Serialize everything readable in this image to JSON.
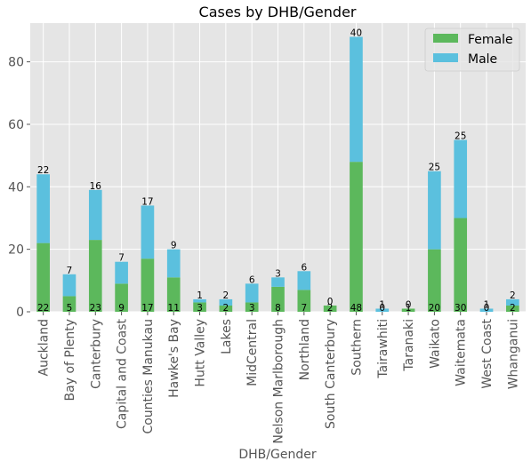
{
  "chart_data": {
    "type": "bar",
    "stacked": true,
    "title": "Cases by DHB/Gender",
    "xlabel": "DHB/Gender",
    "ylabel": "",
    "ylim": [
      0,
      92.4
    ],
    "yticks": [
      0,
      20,
      40,
      60,
      80
    ],
    "grid": true,
    "legend_position": "top-right",
    "categories": [
      "Auckland",
      "Bay of Plenty",
      "Canterbury",
      "Capital and Coast",
      "Counties Manukau",
      "Hawke's Bay",
      "Hutt Valley",
      "Lakes",
      "MidCentral",
      "Nelson Marlborough",
      "Northland",
      "South Canterbury",
      "Southern",
      "Tairawhiti",
      "Taranaki",
      "Waikato",
      "Waitemata",
      "West Coast",
      "Whanganui"
    ],
    "series": [
      {
        "name": "Female",
        "color": "#5cb85c",
        "values": [
          22,
          5,
          23,
          9,
          17,
          11,
          3,
          2,
          3,
          8,
          7,
          2,
          48,
          0,
          1,
          20,
          30,
          0,
          2
        ]
      },
      {
        "name": "Male",
        "color": "#5bc0de",
        "values": [
          22,
          7,
          16,
          7,
          17,
          9,
          1,
          2,
          6,
          3,
          6,
          0,
          40,
          1,
          0,
          25,
          25,
          1,
          2
        ]
      }
    ],
    "data_labels": {
      "female": [
        "22",
        "5",
        "23",
        "9",
        "17",
        "11",
        "3",
        "2",
        "3",
        "8",
        "7",
        "2",
        "48",
        "0",
        "1",
        "20",
        "30",
        "0",
        "2"
      ],
      "male": [
        "22",
        "7",
        "16",
        "7",
        "17",
        "9",
        "1",
        "2",
        "6",
        "3",
        "6",
        "0",
        "40",
        "1",
        "0",
        "25",
        "25",
        "1",
        "2"
      ]
    }
  }
}
